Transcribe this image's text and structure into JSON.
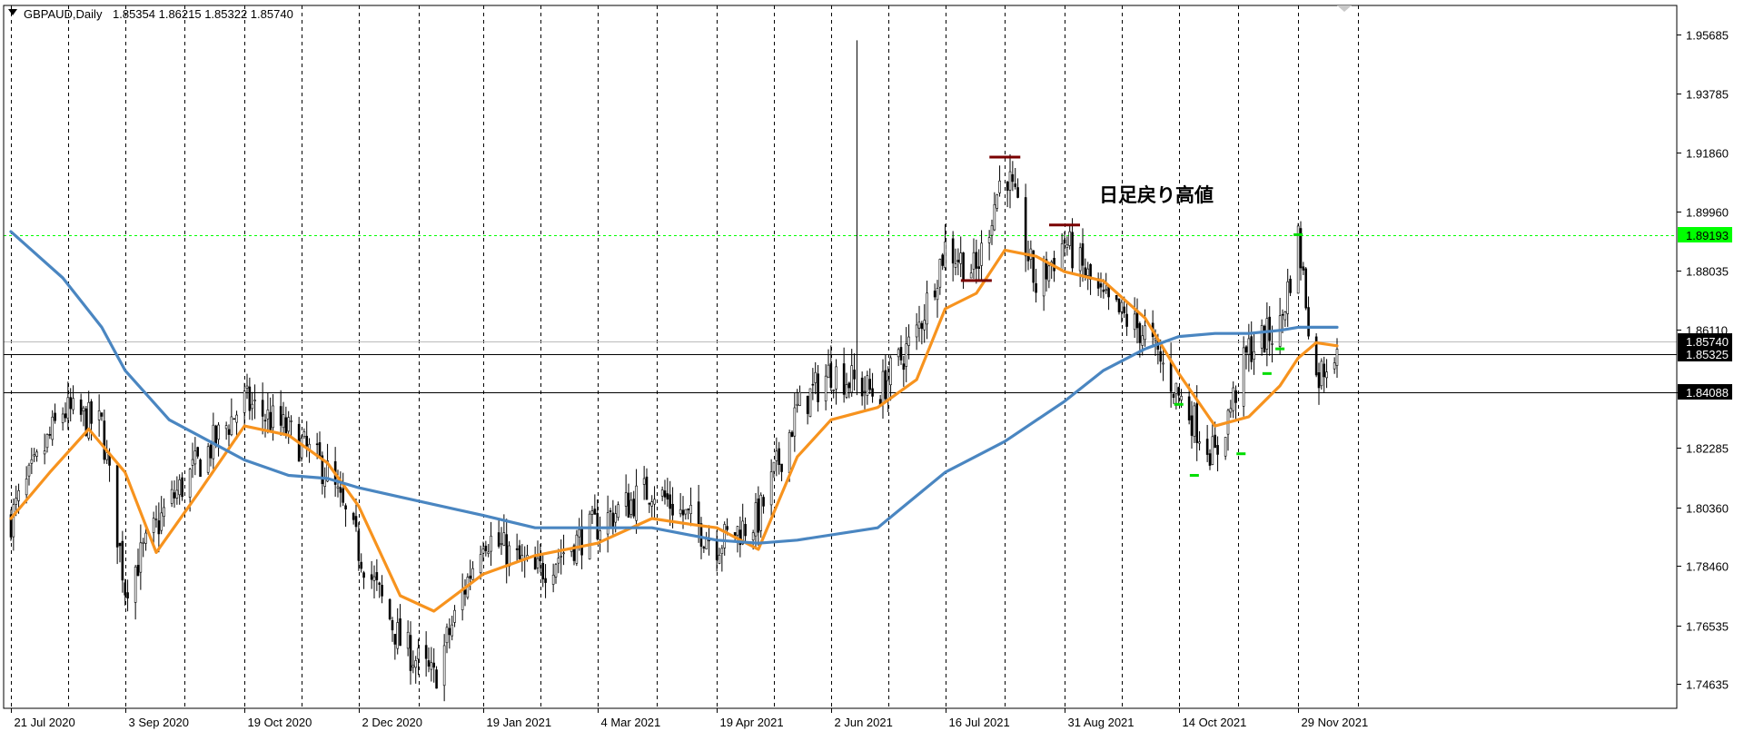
{
  "header": {
    "symbol": "GBPAUD,Daily",
    "ohlc": "1.85354 1.86215 1.85322 1.85740"
  },
  "colors": {
    "background": "#ffffff",
    "frame": "#000000",
    "candle": "#000000",
    "ma_fast": "#f7931e",
    "ma_slow": "#4a86c1",
    "level_green": "#00ff00",
    "swing_high": "#7a0000",
    "swing_low": "#00dd00"
  },
  "annotation": {
    "text": "日足戻り高値"
  },
  "chart_data": {
    "type": "line",
    "title": "",
    "xlabel": "",
    "ylabel": "",
    "ylim": [
      1.7385,
      1.9663
    ],
    "y_ticks": [
      "1.95685",
      "1.93785",
      "1.91860",
      "1.89960",
      "1.88035",
      "1.86110",
      "1.84088",
      "1.82285",
      "1.80360",
      "1.78460",
      "1.76535",
      "1.74635"
    ],
    "x_labels": [
      "21 Jul 2020",
      "3 Sep 2020",
      "19 Oct 2020",
      "2 Dec 2020",
      "19 Jan 2021",
      "4 Mar 2021",
      "19 Apr 2021",
      "2 Jun 2021",
      "16 Jul 2021",
      "31 Aug 2021",
      "14 Oct 2021",
      "29 Nov 2021"
    ],
    "price_series": {
      "name": "",
      "x": [
        "2020-07-21",
        "2020-08-10",
        "2020-08-25",
        "2020-09-03",
        "2020-09-20",
        "2020-10-19",
        "2020-11-05",
        "2020-11-20",
        "2020-12-02",
        "2020-12-18",
        "2020-12-31",
        "2021-01-19",
        "2021-02-08",
        "2021-03-04",
        "2021-03-25",
        "2021-04-19",
        "2021-05-05",
        "2021-05-20",
        "2021-06-02",
        "2021-06-20",
        "2021-07-05",
        "2021-07-16",
        "2021-07-28",
        "2021-08-08",
        "2021-08-20",
        "2021-08-31",
        "2021-09-15",
        "2021-10-01",
        "2021-10-14",
        "2021-10-28",
        "2021-11-10",
        "2021-11-22",
        "2021-11-29",
        "2021-12-06",
        "2021-12-14"
      ],
      "values": [
        1.8,
        1.835,
        1.83,
        1.778,
        1.805,
        1.838,
        1.828,
        1.815,
        1.79,
        1.76,
        1.748,
        1.795,
        1.782,
        1.798,
        1.81,
        1.792,
        1.8,
        1.835,
        1.848,
        1.84,
        1.86,
        1.888,
        1.88,
        1.915,
        1.875,
        1.89,
        1.87,
        1.86,
        1.84,
        1.82,
        1.855,
        1.862,
        1.891,
        1.845,
        1.857
      ]
    },
    "series": [
      {
        "name": "",
        "color": "#f7931e",
        "x": [
          "2020-07-21",
          "2020-08-05",
          "2020-08-20",
          "2020-09-03",
          "2020-09-15",
          "2020-10-01",
          "2020-10-19",
          "2020-11-05",
          "2020-11-20",
          "2020-12-02",
          "2020-12-18",
          "2020-12-31",
          "2021-01-19",
          "2021-02-08",
          "2021-03-04",
          "2021-03-25",
          "2021-04-10",
          "2021-04-19",
          "2021-05-05",
          "2021-05-20",
          "2021-06-02",
          "2021-06-20",
          "2021-07-05",
          "2021-07-16",
          "2021-07-28",
          "2021-08-08",
          "2021-08-20",
          "2021-08-31",
          "2021-09-15",
          "2021-10-01",
          "2021-10-14",
          "2021-10-28",
          "2021-11-10",
          "2021-11-22",
          "2021-11-29",
          "2021-12-06",
          "2021-12-14"
        ],
        "values": [
          1.8,
          1.815,
          1.829,
          1.815,
          1.789,
          1.808,
          1.83,
          1.827,
          1.818,
          1.804,
          1.775,
          1.77,
          1.782,
          1.788,
          1.792,
          1.8,
          1.798,
          1.797,
          1.79,
          1.82,
          1.832,
          1.836,
          1.845,
          1.868,
          1.873,
          1.887,
          1.885,
          1.88,
          1.877,
          1.865,
          1.847,
          1.83,
          1.833,
          1.843,
          1.852,
          1.857,
          1.856
        ]
      },
      {
        "name": "",
        "color": "#4a86c1",
        "x": [
          "2020-07-21",
          "2020-08-10",
          "2020-08-25",
          "2020-09-03",
          "2020-09-20",
          "2020-10-19",
          "2020-11-05",
          "2020-11-20",
          "2020-12-02",
          "2020-12-18",
          "2021-01-19",
          "2021-02-08",
          "2021-03-04",
          "2021-03-25",
          "2021-04-19",
          "2021-05-05",
          "2021-05-20",
          "2021-06-20",
          "2021-07-16",
          "2021-08-08",
          "2021-08-31",
          "2021-09-15",
          "2021-10-01",
          "2021-10-14",
          "2021-10-28",
          "2021-11-10",
          "2021-11-22",
          "2021-11-29",
          "2021-12-14"
        ],
        "values": [
          1.893,
          1.878,
          1.862,
          1.848,
          1.832,
          1.819,
          1.814,
          1.813,
          1.81,
          1.807,
          1.801,
          1.797,
          1.797,
          1.797,
          1.793,
          1.792,
          1.793,
          1.797,
          1.815,
          1.825,
          1.838,
          1.848,
          1.855,
          1.859,
          1.86,
          1.86,
          1.861,
          1.862,
          1.862
        ]
      }
    ],
    "price_labels": [
      {
        "value": 1.89193,
        "text": "1.89193",
        "bg": "#00ff00",
        "fg": "#000000"
      },
      {
        "value": 1.8574,
        "text": "1.85740",
        "bg": "#000000",
        "fg": "#ffffff"
      },
      {
        "value": 1.85325,
        "text": "1.85325",
        "bg": "#000000",
        "fg": "#ffffff"
      },
      {
        "value": 1.84088,
        "text": "1.84088",
        "bg": "#000000",
        "fg": "#ffffff"
      }
    ],
    "horizontal_lines": [
      {
        "value": 1.89193,
        "color": "#00ff00",
        "style": "dashed"
      },
      {
        "value": 1.8574,
        "color": "#bbbbbb",
        "style": "solid"
      },
      {
        "value": 1.85325,
        "color": "#000000",
        "style": "solid"
      },
      {
        "value": 1.84088,
        "color": "#000000",
        "style": "solid"
      }
    ],
    "swing_highs": [
      {
        "x": "2021-08-08",
        "value": 1.917
      },
      {
        "x": "2021-07-28",
        "value": 1.877
      },
      {
        "x": "2021-08-31",
        "value": 1.895
      }
    ],
    "swing_lows": [
      {
        "x": "2021-10-14",
        "value": 1.837
      },
      {
        "x": "2021-10-20",
        "value": 1.814
      },
      {
        "x": "2021-11-07",
        "value": 1.821
      },
      {
        "x": "2021-11-17",
        "value": 1.847
      },
      {
        "x": "2021-11-22",
        "value": 1.855
      },
      {
        "x": "2021-11-29",
        "value": 1.892
      }
    ],
    "spike": {
      "x": "2021-06-12",
      "high": 1.955,
      "low": 1.84
    },
    "grid": true,
    "legend": "none"
  }
}
